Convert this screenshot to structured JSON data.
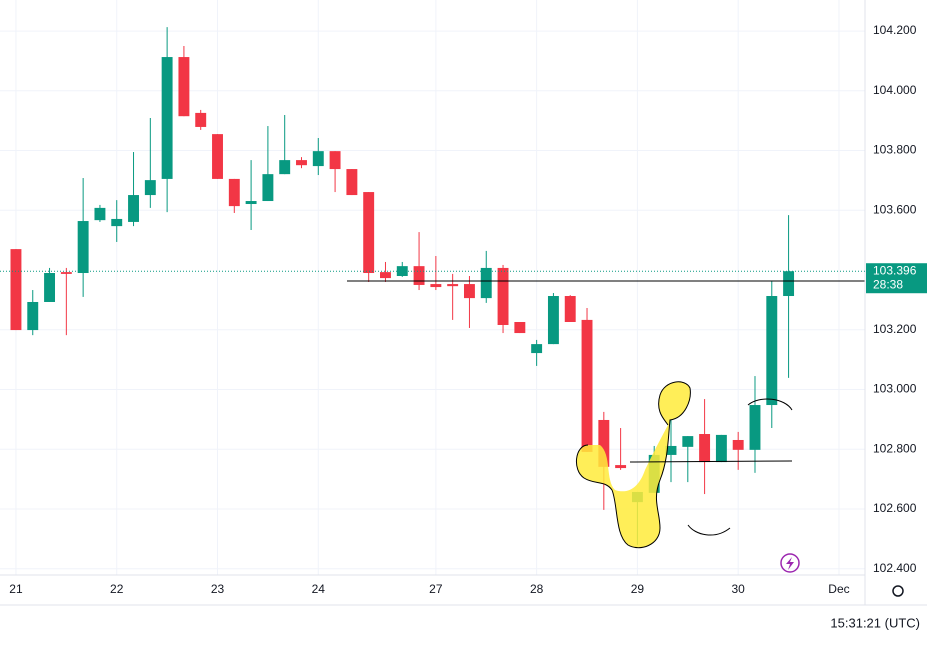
{
  "chart_data": {
    "type": "candlestick",
    "up_color": "#089981",
    "down_color": "#f23645",
    "ylim": [
      102.379,
      104.304
    ],
    "yticks": [
      {
        "value": 102.4,
        "label": "102.400"
      },
      {
        "value": 102.6,
        "label": "102.600"
      },
      {
        "value": 102.8,
        "label": "102.800"
      },
      {
        "value": 103.0,
        "label": "103.000"
      },
      {
        "value": 103.2,
        "label": "103.200"
      },
      {
        "value": 103.6,
        "label": "103.600"
      },
      {
        "value": 103.8,
        "label": "103.800"
      },
      {
        "value": 104.0,
        "label": "104.000"
      },
      {
        "value": 104.2,
        "label": "104.200"
      }
    ],
    "xlim": [
      -0.95,
      50.55
    ],
    "xticks": [
      {
        "value": 0,
        "label": "21"
      },
      {
        "value": 6,
        "label": "22"
      },
      {
        "value": 12,
        "label": "23"
      },
      {
        "value": 18,
        "label": "24"
      },
      {
        "value": 25,
        "label": "27"
      },
      {
        "value": 31,
        "label": "28"
      },
      {
        "value": 37,
        "label": "29"
      },
      {
        "value": 43,
        "label": "30"
      },
      {
        "value": 49,
        "label": "Dec"
      }
    ],
    "grid": true,
    "open": [
      103.47,
      103.199,
      103.293,
      103.393,
      103.39,
      103.567,
      103.547,
      103.561,
      103.651,
      103.705,
      104.113,
      103.926,
      103.855,
      103.705,
      103.621,
      103.631,
      103.721,
      103.768,
      103.748,
      103.798,
      103.738,
      103.661,
      103.393,
      103.38,
      103.413,
      103.353,
      103.353,
      103.353,
      103.306,
      103.407,
      103.226,
      103.122,
      103.152,
      103.313,
      103.233,
      102.898,
      102.747,
      102.623,
      102.654,
      102.781,
      102.808,
      102.851,
      102.757,
      102.831,
      102.798,
      102.948,
      103.313
    ],
    "high": [
      103.47,
      103.333,
      103.407,
      103.407,
      103.708,
      103.618,
      103.634,
      103.795,
      103.909,
      104.213,
      104.15,
      103.936,
      103.855,
      103.705,
      103.768,
      103.882,
      103.919,
      103.778,
      103.842,
      103.798,
      103.738,
      103.661,
      103.427,
      103.427,
      103.527,
      103.447,
      103.387,
      103.38,
      103.464,
      103.417,
      103.226,
      103.166,
      103.323,
      103.316,
      103.273,
      102.925,
      102.871,
      102.657,
      102.811,
      102.898,
      102.844,
      102.968,
      102.848,
      102.858,
      103.045,
      103.363,
      103.584
    ],
    "low": [
      103.199,
      103.182,
      103.293,
      103.182,
      103.31,
      103.561,
      103.494,
      103.547,
      103.608,
      103.594,
      103.915,
      103.869,
      103.705,
      103.591,
      103.534,
      103.631,
      103.721,
      103.741,
      103.718,
      103.661,
      103.651,
      103.36,
      103.36,
      103.377,
      103.333,
      103.333,
      103.233,
      103.206,
      103.29,
      103.189,
      103.189,
      103.079,
      103.152,
      103.226,
      102.791,
      102.597,
      102.731,
      102.48,
      102.654,
      102.69,
      102.69,
      102.65,
      102.757,
      102.731,
      102.721,
      102.871,
      103.039
    ],
    "close": [
      103.199,
      103.293,
      103.39,
      103.387,
      103.564,
      103.608,
      103.571,
      103.651,
      103.701,
      104.113,
      103.915,
      103.879,
      103.705,
      103.614,
      103.631,
      103.721,
      103.768,
      103.751,
      103.798,
      103.738,
      103.651,
      103.39,
      103.373,
      103.413,
      103.35,
      103.343,
      103.346,
      103.306,
      103.407,
      103.216,
      103.189,
      103.152,
      103.313,
      103.226,
      102.791,
      102.741,
      102.737,
      102.657,
      102.781,
      102.811,
      102.844,
      102.757,
      102.848,
      102.798,
      102.948,
      103.313,
      103.396
    ],
    "last_price": 103.396,
    "countdown": "28:38",
    "clock": "15:31:21 (UTC)"
  }
}
